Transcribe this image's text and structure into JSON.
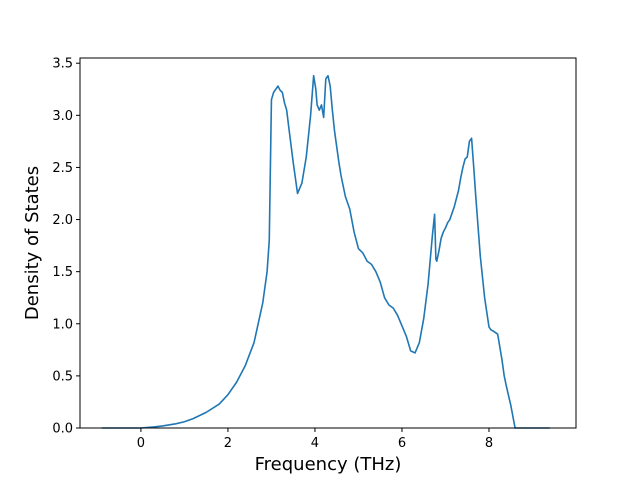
{
  "chart_data": {
    "type": "line",
    "title": "",
    "xlabel": "Frequency (THz)",
    "ylabel": "Density of States",
    "xlim": [
      -1.4,
      10.0
    ],
    "ylim": [
      0.0,
      3.55
    ],
    "xticks": [
      0,
      2,
      4,
      6,
      8
    ],
    "xtick_labels": [
      "0",
      "2",
      "4",
      "6",
      "8"
    ],
    "yticks": [
      0.0,
      0.5,
      1.0,
      1.5,
      2.0,
      2.5,
      3.0,
      3.5
    ],
    "ytick_labels": [
      "0.0",
      "0.5",
      "1.0",
      "1.5",
      "2.0",
      "2.5",
      "3.0",
      "3.5"
    ],
    "grid": false,
    "legend": "none",
    "line_color": "#1f77b4",
    "series": [
      {
        "x": [
          -0.9,
          -0.5,
          0.0,
          0.3,
          0.5,
          0.8,
          1.0,
          1.2,
          1.5,
          1.8,
          2.0,
          2.2,
          2.4,
          2.6,
          2.8,
          2.9,
          2.95,
          3.0,
          3.05,
          3.1,
          3.15,
          3.2,
          3.25,
          3.3,
          3.35,
          3.4,
          3.5,
          3.6,
          3.7,
          3.8,
          3.9,
          3.97,
          4.02,
          4.05,
          4.1,
          4.15,
          4.2,
          4.25,
          4.3,
          4.35,
          4.4,
          4.45,
          4.5,
          4.55,
          4.6,
          4.7,
          4.8,
          4.9,
          5.0,
          5.1,
          5.2,
          5.3,
          5.4,
          5.5,
          5.6,
          5.7,
          5.8,
          5.9,
          6.0,
          6.1,
          6.2,
          6.3,
          6.4,
          6.5,
          6.6,
          6.7,
          6.75,
          6.78,
          6.8,
          6.85,
          6.9,
          6.95,
          7.0,
          7.05,
          7.1,
          7.2,
          7.3,
          7.35,
          7.4,
          7.45,
          7.5,
          7.55,
          7.6,
          7.65,
          7.7,
          7.8,
          7.9,
          8.0,
          8.05,
          8.1,
          8.2,
          8.3,
          8.35,
          8.4,
          8.5,
          8.6,
          8.7,
          8.8,
          9.0,
          9.2,
          9.4
        ],
        "y": [
          0.0,
          0.0,
          0.0,
          0.01,
          0.02,
          0.04,
          0.06,
          0.09,
          0.15,
          0.23,
          0.32,
          0.44,
          0.6,
          0.82,
          1.2,
          1.5,
          1.8,
          3.15,
          3.22,
          3.25,
          3.28,
          3.24,
          3.22,
          3.12,
          3.05,
          2.88,
          2.55,
          2.25,
          2.35,
          2.6,
          3.0,
          3.38,
          3.25,
          3.1,
          3.05,
          3.1,
          2.98,
          3.35,
          3.38,
          3.28,
          3.05,
          2.85,
          2.7,
          2.55,
          2.42,
          2.22,
          2.1,
          1.88,
          1.72,
          1.68,
          1.6,
          1.57,
          1.5,
          1.4,
          1.25,
          1.18,
          1.15,
          1.08,
          0.98,
          0.88,
          0.74,
          0.72,
          0.82,
          1.05,
          1.38,
          1.85,
          2.05,
          1.62,
          1.6,
          1.7,
          1.82,
          1.88,
          1.92,
          1.97,
          2.0,
          2.12,
          2.28,
          2.4,
          2.5,
          2.58,
          2.6,
          2.75,
          2.78,
          2.5,
          2.2,
          1.65,
          1.25,
          0.97,
          0.94,
          0.93,
          0.9,
          0.65,
          0.5,
          0.4,
          0.22,
          0.0,
          0.0,
          0.0,
          0.0,
          0.0,
          0.0
        ]
      }
    ]
  }
}
